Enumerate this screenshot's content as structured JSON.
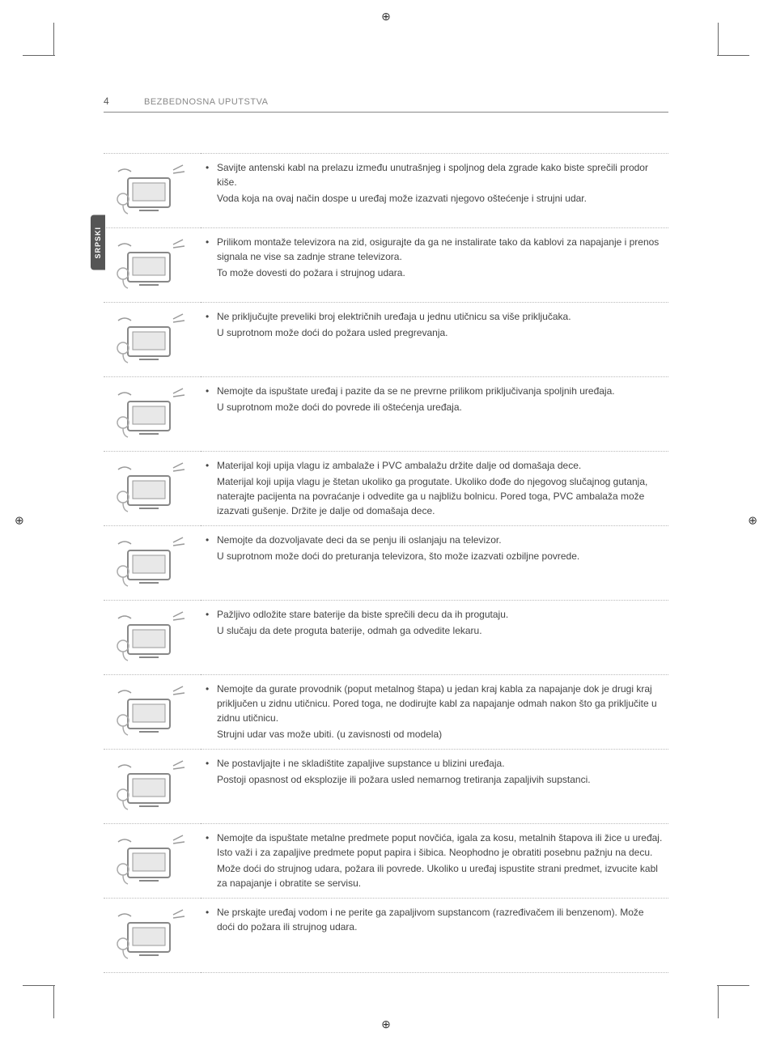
{
  "page_number": "4",
  "header_title": "BEZBEDNOSNA UPUTSTVA",
  "side_tab": "SRPSKI",
  "rows": [
    {
      "main": "Savijte antenski kabl na prelazu između unutrašnjeg i spoljnog dela zgrade kako biste sprečili prodor kiše.",
      "sub": "Voda koja na ovaj način dospe u uređaj može izazvati njegovo oštećenje i strujni udar."
    },
    {
      "main": "Prilikom montaže televizora na zid, osigurajte da ga ne instalirate tako da kablovi za napajanje i prenos signala ne vise sa zadnje strane televizora.",
      "sub": "To može dovesti do požara i strujnog udara."
    },
    {
      "main": "Ne priključujte preveliki broj električnih uređaja u jednu utičnicu sa više priključaka.",
      "sub": "U suprotnom može doći do požara usled pregrevanja."
    },
    {
      "main": "Nemojte da ispuštate uređaj i pazite da se ne prevrne prilikom priključivanja spoljnih uređaja.",
      "sub": "U suprotnom može doći do povrede ili oštećenja uređaja."
    },
    {
      "main": "Materijal koji upija vlagu iz ambalaže i PVC ambalažu držite dalje od domašaja dece.",
      "sub": "Materijal koji upija vlagu je štetan ukoliko ga progutate. Ukoliko dođe do njegovog slučajnog gutanja, naterajte pacijenta na povraćanje i odvedite ga u najbližu bolnicu. Pored toga, PVC ambalaža može izazvati gušenje. Držite je dalje od domašaja dece."
    },
    {
      "main": "Nemojte da dozvoljavate deci da se penju ili oslanjaju na televizor.",
      "sub": "U suprotnom može doći do preturanja televizora, što može izazvati ozbiljne povrede."
    },
    {
      "main": "Pažljivo odložite stare baterije da biste sprečili decu da ih progutaju.",
      "sub": "U slučaju da dete proguta baterije, odmah ga odvedite lekaru."
    },
    {
      "main": "Nemojte da gurate provodnik (poput metalnog štapa) u jedan kraj kabla za napajanje dok je drugi kraj priključen u zidnu utičnicu. Pored toga, ne dodirujte kabl za napajanje odmah nakon što ga priključite u zidnu utičnicu.",
      "sub": "Strujni udar vas može ubiti.\n(u zavisnosti od modela)"
    },
    {
      "main": "Ne postavljajte i ne skladištite zapaljive supstance u blizini uređaja.",
      "sub": "Postoji opasnost od eksplozije ili požara usled nemarnog tretiranja zapaljivih supstanci."
    },
    {
      "main": "Nemojte da ispuštate metalne predmete poput novčića, igala za kosu, metalnih štapova ili žice u uređaj. Isto važi i za zapaljive predmete poput papira i šibica. Neophodno je obratiti posebnu pažnju na decu.",
      "sub": "Može doći do strujnog udara, požara ili povrede. Ukoliko u uređaj ispustite strani predmet, izvucite kabl za napajanje i obratite se servisu."
    },
    {
      "main": "Ne prskajte uređaj vodom i ne perite ga zapaljivom supstancom (razređivačem ili benzenom). Može doći do požara ili strujnog udara.",
      "sub": ""
    }
  ]
}
